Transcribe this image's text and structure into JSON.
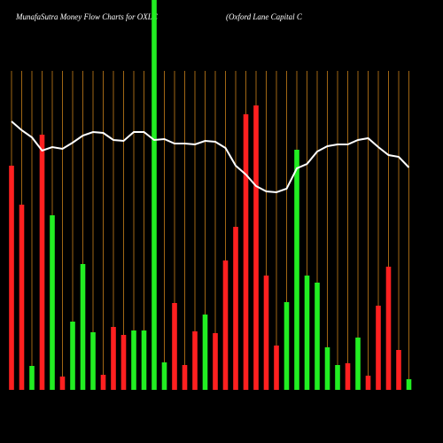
{
  "chart_data": {
    "type": "bar",
    "title": "MunafaSutra  Money Flow  Charts for OXLC",
    "subtitle": "(Oxford Lane   Capital C",
    "background": "#000000",
    "grid": true,
    "grid_color": "#c8801a",
    "categories": [
      null,
      null,
      null,
      null,
      null,
      null,
      null,
      null,
      null,
      null,
      null,
      null,
      null,
      null,
      null,
      null,
      null,
      null,
      null,
      null,
      null,
      null,
      null,
      null,
      null,
      null,
      null,
      null,
      null,
      null,
      null,
      null,
      null,
      null,
      null,
      null,
      null,
      null,
      null,
      null
    ],
    "ylim": [
      0,
      440
    ],
    "series": [
      {
        "type": "bar",
        "values": [
          253,
          209,
          27,
          288,
          197,
          15,
          77,
          142,
          65,
          17,
          71,
          62,
          67,
          67,
          440,
          31,
          98,
          28,
          66,
          85,
          64,
          146,
          184,
          311,
          321,
          129,
          50,
          99,
          271,
          129,
          121,
          48,
          28,
          30,
          59,
          16,
          95,
          139,
          45,
          12
        ],
        "colors": [
          "#ff2020",
          "#ff2020",
          "#22ee22",
          "#ff2020",
          "#22ee22",
          "#ff2020",
          "#22ee22",
          "#22ee22",
          "#22ee22",
          "#ff2020",
          "#ff2020",
          "#ff2020",
          "#22ee22",
          "#22ee22",
          "#22ee22",
          "#22ee22",
          "#ff2020",
          "#ff2020",
          "#ff2020",
          "#22ee22",
          "#ff2020",
          "#ff2020",
          "#ff2020",
          "#ff2020",
          "#ff2020",
          "#ff2020",
          "#ff2020",
          "#22ee22",
          "#22ee22",
          "#22ee22",
          "#22ee22",
          "#22ee22",
          "#22ee22",
          "#ff2020",
          "#22ee22",
          "#ff2020",
          "#ff2020",
          "#ff2020",
          "#ff2020",
          "#22ee22"
        ]
      },
      {
        "type": "line",
        "color": "#ffffff",
        "values": [
          303,
          293,
          285,
          270,
          274,
          272,
          279,
          287,
          291,
          290,
          282,
          281,
          291,
          291,
          282,
          283,
          278,
          278,
          277,
          281,
          280,
          273,
          253,
          243,
          230,
          224,
          223,
          227,
          250,
          255,
          269,
          275,
          277,
          277,
          282,
          284,
          274,
          265,
          263,
          251
        ]
      }
    ]
  }
}
